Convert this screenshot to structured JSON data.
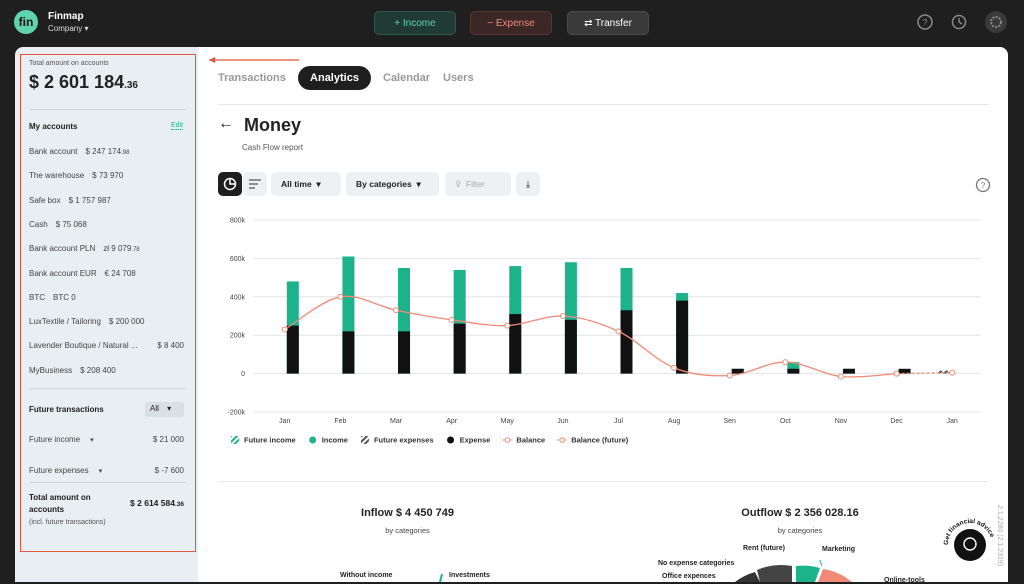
{
  "header": {
    "brand": "Finmap",
    "company": "Company",
    "buttons": [
      "+ Income",
      "− Expense",
      "⇄ Transfer"
    ]
  },
  "sidebar": {
    "total_label": "Total amount on accounts",
    "total_main": "$ 2 601 184",
    "total_cents": ".36",
    "accounts_title": "My accounts",
    "edit": "Edit",
    "accounts": [
      {
        "name": "Bank account",
        "amount": "$ 247 174",
        "cents": ".98"
      },
      {
        "name": "The warehouse",
        "amount": "$ 73 970"
      },
      {
        "name": "Safe box",
        "amount": "$ 1 757 987"
      },
      {
        "name": "Cash",
        "amount": "$ 75 068"
      },
      {
        "name": "Bank account PLN",
        "amount": "zł 9 079",
        "cents": ".78"
      },
      {
        "name": "Bank account EUR",
        "amount": "€ 24 708"
      },
      {
        "name": "BTC",
        "amount": "BTC 0"
      },
      {
        "name": "LuxTextile / Tailoring",
        "amount": "$ 200 000"
      },
      {
        "name": "Lavender Boutique / Natural ...",
        "amount": "$ 8 400"
      },
      {
        "name": "MyBusiness",
        "amount": "$ 208 400"
      }
    ],
    "future_title": "Future transactions",
    "filter": "All",
    "future": [
      {
        "name": "Future income",
        "amount": "$ 21 000"
      },
      {
        "name": "Future expenses",
        "amount": "$ -7 600"
      }
    ],
    "grand_label": "Total amount on accounts",
    "grand_main": "$ 2 614 584",
    "grand_cents": ".36",
    "grand_note": "(incl. future transactions)"
  },
  "tabs": [
    "Transactions",
    "Analytics",
    "Calendar",
    "Users"
  ],
  "report": {
    "title": "Money",
    "subtitle": "Cash Flow report",
    "period": "All time",
    "grouping": "By categories",
    "filter": "Filter"
  },
  "chart_data": {
    "type": "bar",
    "categories": [
      "Jan",
      "Feb",
      "Mar",
      "Apr",
      "May",
      "Jun",
      "Jul",
      "Aug",
      "Sen",
      "Oct",
      "Nov",
      "Dec",
      "Jan"
    ],
    "ylim": [
      -200000,
      800000
    ],
    "yticks": [
      {
        "value": -200000,
        "label": "-200k"
      },
      0,
      {
        "value": 200000,
        "label": "200k"
      },
      {
        "value": 400000,
        "label": "400k"
      },
      {
        "value": 600000,
        "label": "600k"
      },
      {
        "value": 800000,
        "label": "800k"
      }
    ],
    "grid": true,
    "series": [
      {
        "name": "Future income",
        "type": "bar",
        "hatched": true,
        "color": "#1db38a",
        "values": [
          null,
          null,
          null,
          null,
          null,
          null,
          null,
          null,
          null,
          null,
          null,
          null,
          15000
        ]
      },
      {
        "name": "Income",
        "type": "bar",
        "color": "#1db38a",
        "values": [
          480000,
          610000,
          550000,
          540000,
          560000,
          580000,
          550000,
          420000,
          25000,
          60000,
          25000,
          null,
          null
        ]
      },
      {
        "name": "Future expenses",
        "type": "bar",
        "hatched": true,
        "color": "#555555",
        "values": [
          null,
          null,
          null,
          null,
          null,
          null,
          null,
          null,
          null,
          null,
          null,
          null,
          15000
        ]
      },
      {
        "name": "Expense",
        "type": "bar",
        "color": "#111111",
        "values": [
          250000,
          220000,
          220000,
          260000,
          310000,
          280000,
          330000,
          380000,
          25000,
          25000,
          25000,
          25000,
          null
        ]
      },
      {
        "name": "Balance",
        "type": "line",
        "color": "#f08a75",
        "values": [
          230000,
          400000,
          330000,
          280000,
          250000,
          300000,
          220000,
          30000,
          -10000,
          60000,
          -15000,
          0,
          null
        ]
      },
      {
        "name": "Balance (future)",
        "type": "line",
        "dashed": true,
        "color": "#f08a75",
        "values": [
          null,
          null,
          null,
          null,
          null,
          null,
          null,
          null,
          null,
          null,
          null,
          0,
          5000
        ]
      }
    ]
  },
  "inflow": {
    "title": "Inflow $ 4 450 749",
    "subtitle": "by categories",
    "labels": [
      "Without income",
      "Investments"
    ]
  },
  "outflow": {
    "title": "Outflow $ 2 356 028.16",
    "subtitle": "by categories",
    "labels": [
      "Rent (future)",
      "Marketing",
      "No expense categories",
      "Office expences",
      "Online-tools"
    ]
  },
  "chat": "Get financial advice",
  "version": "2.1.2280 (2.1.2319)"
}
